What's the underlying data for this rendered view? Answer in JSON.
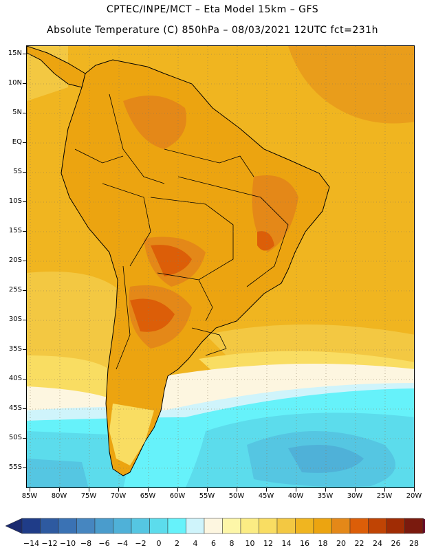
{
  "header": {
    "line1": "CPTEC/INPE/MCT –  Eta Model 15km – GFS",
    "line2": "Absolute Temperature (C) 850hPa – 08/03/2021 12UTC fct=231h"
  },
  "axes": {
    "lat_labels": [
      "15N",
      "10N",
      "5N",
      "EQ",
      "5S",
      "10S",
      "15S",
      "20S",
      "25S",
      "30S",
      "35S",
      "40S",
      "45S",
      "50S",
      "55S"
    ],
    "lon_labels": [
      "85W",
      "80W",
      "75W",
      "70W",
      "65W",
      "60W",
      "55W",
      "50W",
      "45W",
      "40W",
      "35W",
      "30W",
      "25W",
      "20W"
    ]
  },
  "colorbar": {
    "labels": [
      "-14",
      "-12",
      "-10",
      "-8",
      "-6",
      "-4",
      "-2",
      "0",
      "2",
      "4",
      "6",
      "8",
      "10",
      "12",
      "14",
      "16",
      "18",
      "20",
      "22",
      "24",
      "26",
      "28"
    ],
    "colors": [
      "#1f3c88",
      "#2e5aa0",
      "#3a72b4",
      "#4686c0",
      "#4a9ccc",
      "#4fb1d8",
      "#55c6e2",
      "#5cdcec",
      "#66f2fa",
      "#cff4fb",
      "#fdf6e0",
      "#fdf6a8",
      "#fbec84",
      "#f9dd62",
      "#f3c842",
      "#f0b520",
      "#eca410",
      "#e48818",
      "#dc5e08",
      "#c04404",
      "#a02c04",
      "#7a1a0e"
    ],
    "under_color": "#1a2a70",
    "over_color": "#6a0426"
  },
  "palette": {
    "ocean_warm": "#f0b520",
    "land_warm": "#eca410",
    "land_hot": "#e48818",
    "land_hotter": "#dc5e08",
    "subtropic": "#f3c842",
    "midlat": "#f9dd62",
    "cool_light": "#fdf6a8",
    "cream": "#fdf6e0",
    "pale_cyan": "#cff4fb",
    "cyan": "#66f2fa",
    "cyan2": "#5cdcec",
    "blue1": "#55c6e2",
    "blue2": "#4fb1d8"
  }
}
